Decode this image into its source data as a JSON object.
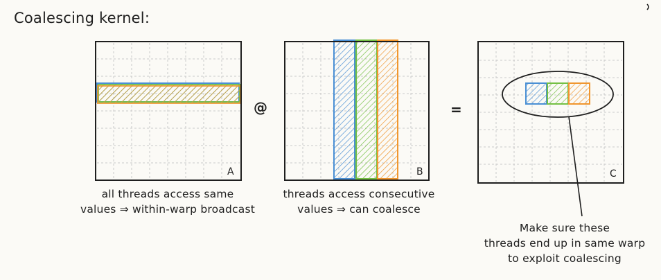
{
  "title": "Coalescing kernel:",
  "matrices": {
    "a": {
      "label": "A"
    },
    "b": {
      "label": "B"
    },
    "c": {
      "label": "C"
    }
  },
  "operators": {
    "matmul": "@",
    "equals": "="
  },
  "captions": {
    "a_line1": "all threads access same",
    "a_line2": "values ⇒ within-warp broadcast",
    "b_line1": "threads access consecutive",
    "b_line2": "values ⇒ can coalesce",
    "c_line1": "Make sure these",
    "c_line2": "threads end up in same warp",
    "c_line3": "to exploit coalescing"
  },
  "colors": {
    "blue": "#4a8fd4",
    "green": "#74c044",
    "orange": "#f0962e",
    "ink": "#1e1e1e",
    "grid": "#c9c9c9"
  }
}
